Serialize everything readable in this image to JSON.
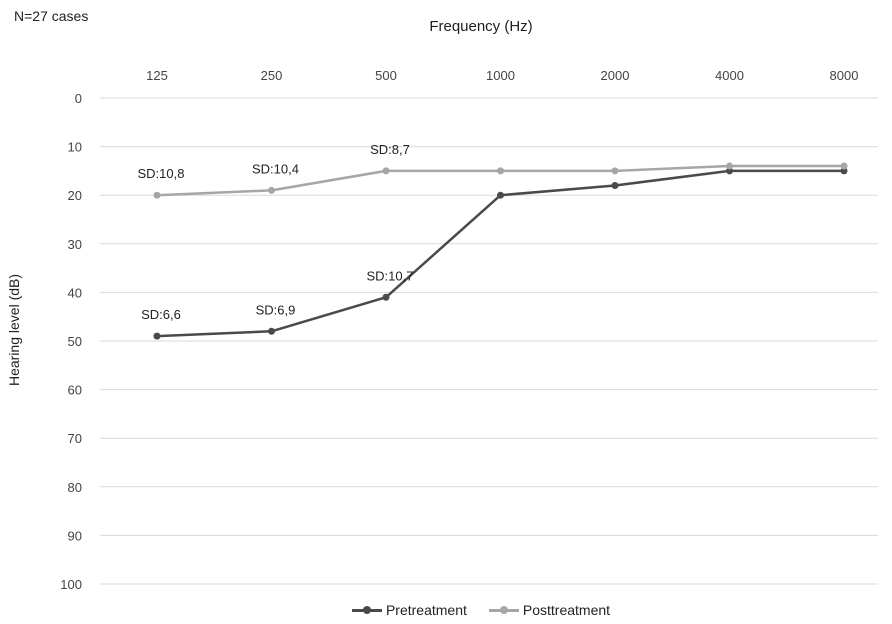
{
  "note": "N=27 cases",
  "chart_data": {
    "type": "line",
    "xlabel": "Frequency (Hz)",
    "ylabel": "Hearing level (dB)",
    "categories": [
      "125",
      "250",
      "500",
      "1000",
      "2000",
      "4000",
      "8000"
    ],
    "yticks": [
      "0",
      "10",
      "20",
      "30",
      "40",
      "50",
      "60",
      "70",
      "80",
      "90",
      "100"
    ],
    "ylim": [
      0,
      100
    ],
    "y_inverted": true,
    "x_axis_position": "top",
    "grid": true,
    "legend_position": "bottom",
    "series": [
      {
        "name": "Pretreatment",
        "color": "#4a4a4a",
        "values": [
          49,
          48,
          41,
          20,
          18,
          15,
          15
        ],
        "labels": [
          "SD:6,6",
          "SD:6,9",
          "SD:10,7",
          "",
          "",
          "",
          ""
        ]
      },
      {
        "name": "Posttreatment",
        "color": "#a6a6a6",
        "values": [
          20,
          19,
          15,
          15,
          15,
          14,
          14
        ],
        "labels": [
          "SD:10,8",
          "SD:10,4",
          "SD:8,7",
          "",
          "",
          "",
          ""
        ]
      }
    ]
  }
}
